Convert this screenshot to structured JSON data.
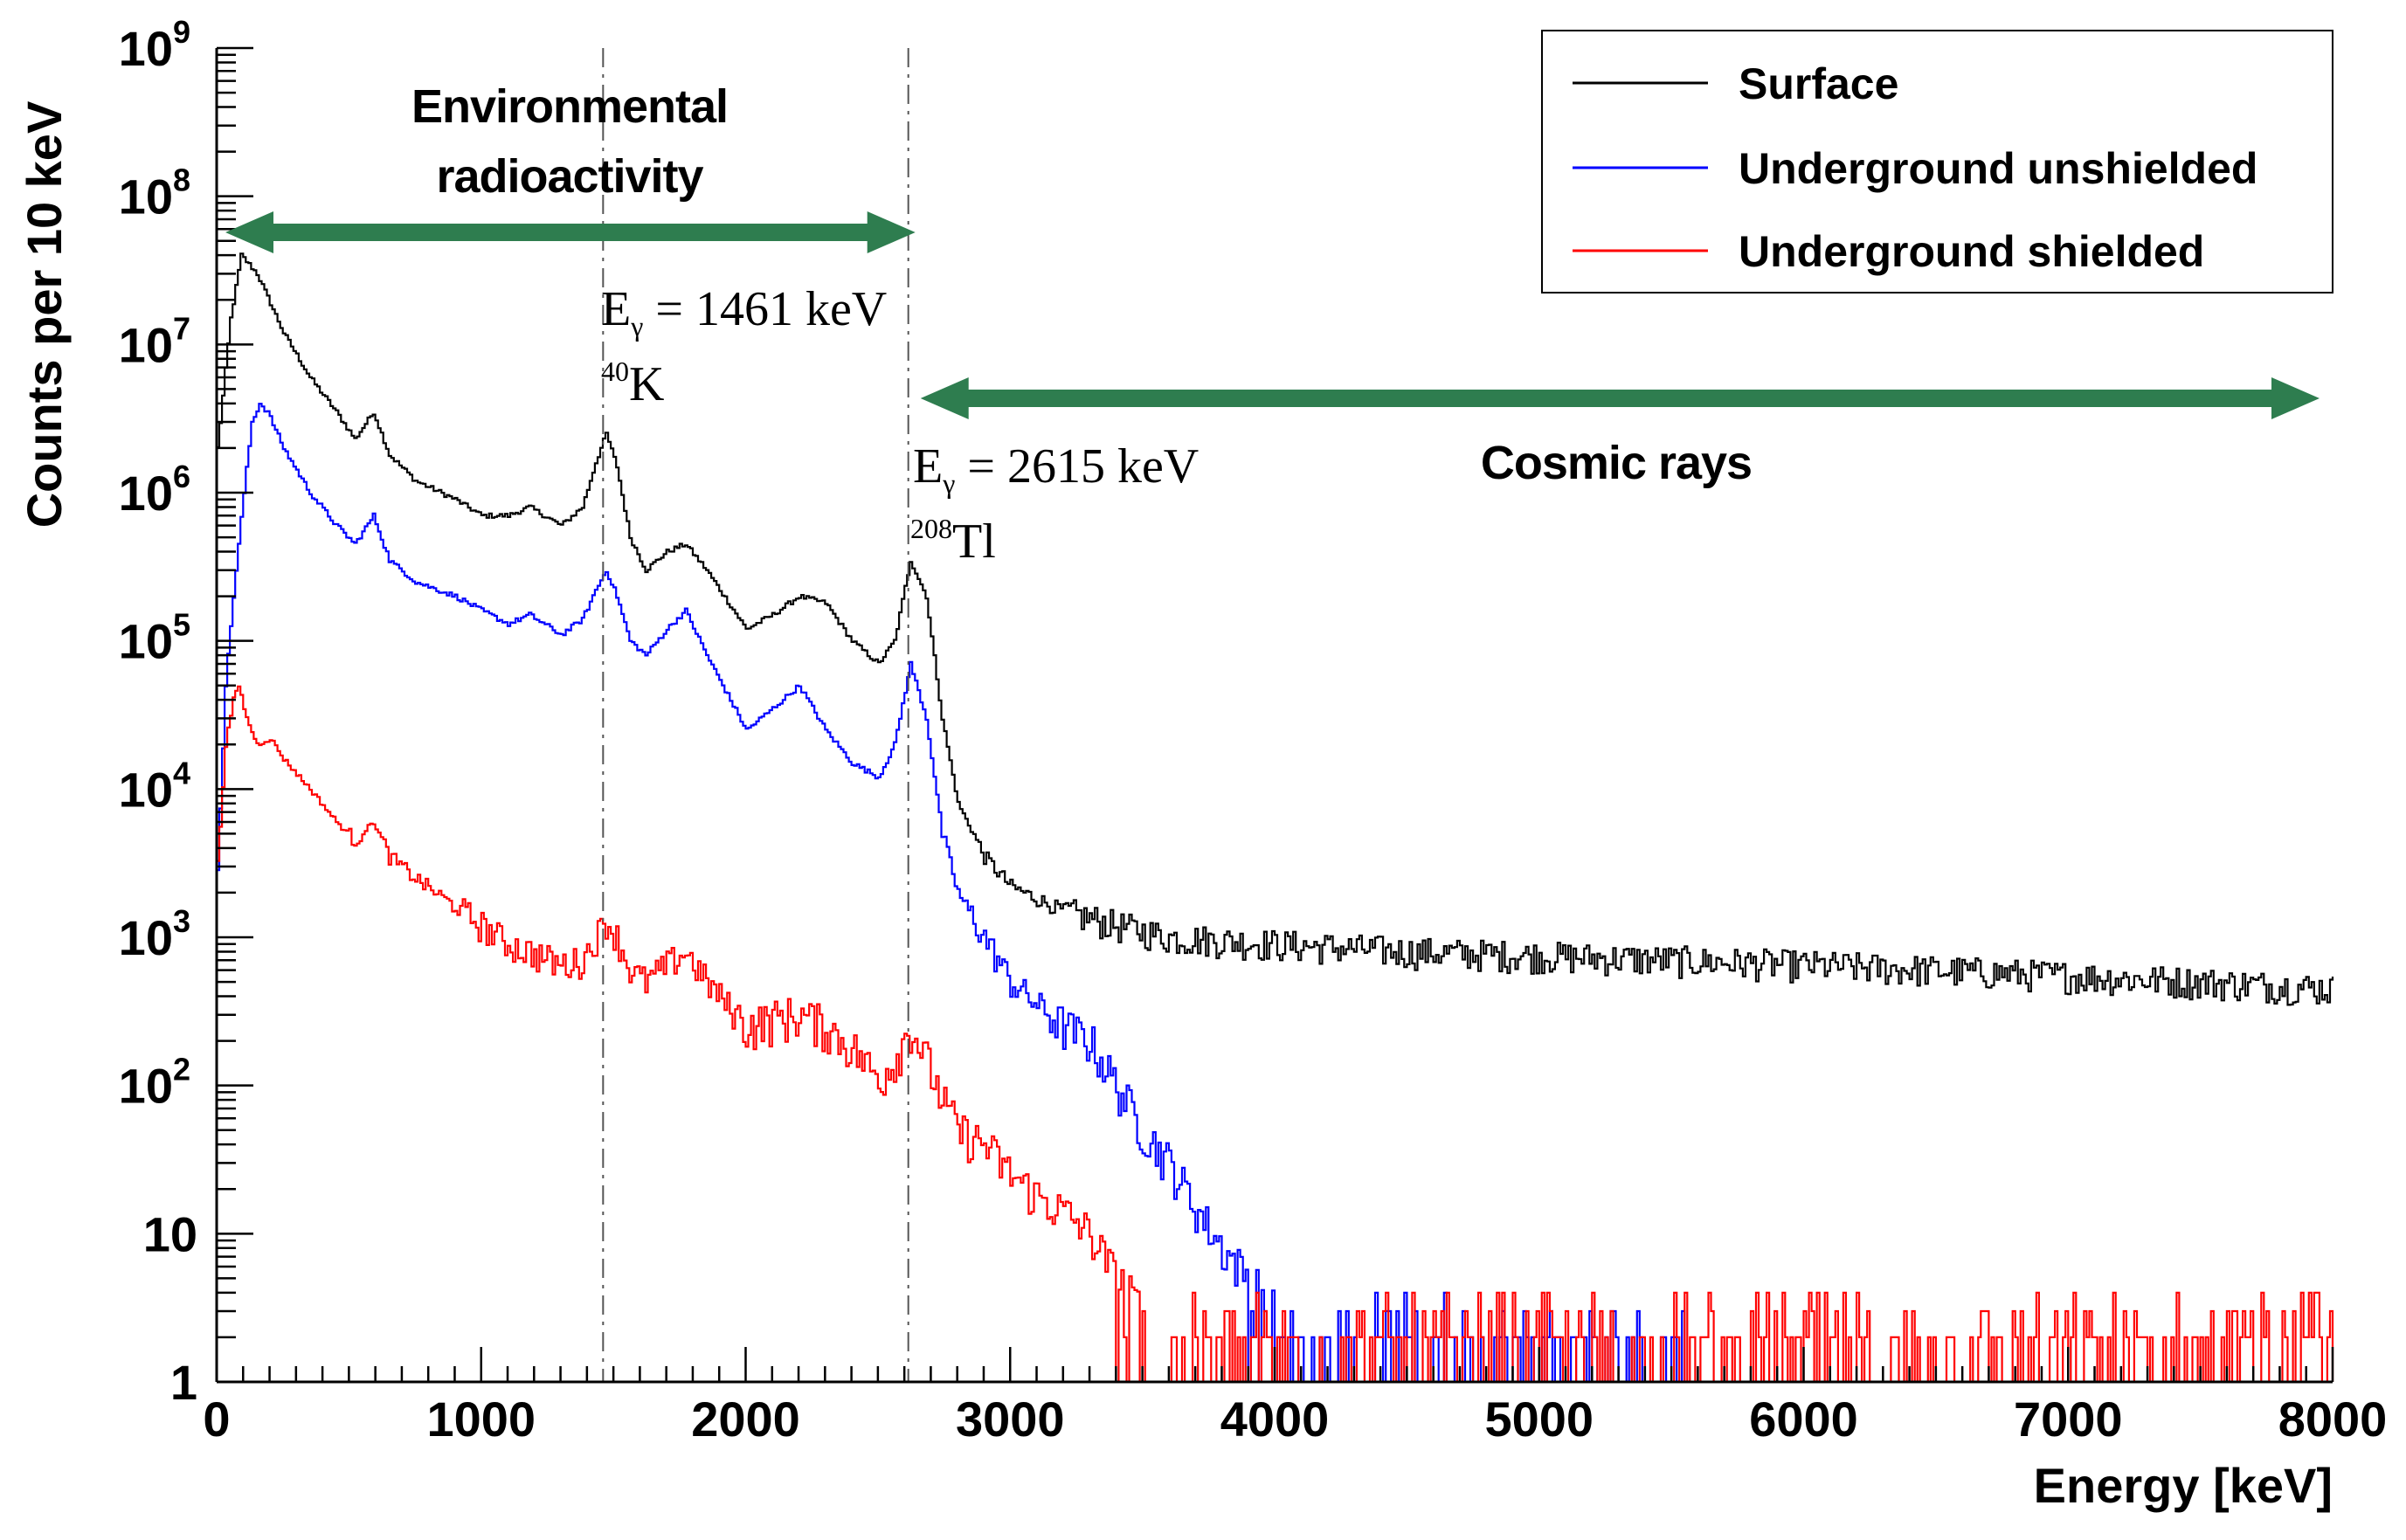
{
  "chart_data": {
    "type": "line",
    "title": "",
    "xlabel": "Energy [keV]",
    "ylabel": "Counts per 10 keV",
    "xlim": [
      0,
      8000
    ],
    "ylim": [
      1,
      1000000000
    ],
    "yscale": "log",
    "grid": false,
    "legend_position": "top-right",
    "x_ticks": [
      0,
      1000,
      2000,
      3000,
      4000,
      5000,
      6000,
      7000,
      8000
    ],
    "x_tick_labels": [
      "0",
      "1000",
      "2000",
      "3000",
      "4000",
      "5000",
      "6000",
      "7000",
      "8000"
    ],
    "y_ticks": [
      {
        "value": 1,
        "base": "1",
        "exp": ""
      },
      {
        "value": 10,
        "base": "10",
        "exp": ""
      },
      {
        "value": 100,
        "base": "10",
        "exp": "2"
      },
      {
        "value": 1000,
        "base": "10",
        "exp": "3"
      },
      {
        "value": 10000,
        "base": "10",
        "exp": "4"
      },
      {
        "value": 100000,
        "base": "10",
        "exp": "5"
      },
      {
        "value": 1000000,
        "base": "10",
        "exp": "6"
      },
      {
        "value": 10000000,
        "base": "10",
        "exp": "7"
      },
      {
        "value": 100000000,
        "base": "10",
        "exp": "8"
      },
      {
        "value": 1000000000,
        "base": "10",
        "exp": "9"
      }
    ],
    "series": [
      {
        "name": "Surface",
        "color": "#000000",
        "x": [
          0,
          50,
          90,
          150,
          250,
          350,
          450,
          520,
          590,
          650,
          750,
          900,
          1000,
          1100,
          1180,
          1300,
          1380,
          1430,
          1470,
          1510,
          1560,
          1620,
          1700,
          1770,
          1850,
          2000,
          2100,
          2200,
          2300,
          2400,
          2500,
          2560,
          2620,
          2680,
          2740,
          2800,
          2900,
          3000,
          3200,
          3400,
          3600,
          4000,
          4500,
          5000,
          5500,
          6000,
          6500,
          7000,
          7500,
          8000
        ],
        "y": [
          2000000.0,
          15000000.0,
          40000000.0,
          30000000.0,
          12000000.0,
          6000000.0,
          3500000.0,
          2300000.0,
          3500000.0,
          1800000.0,
          1200000.0,
          900000.0,
          700000.0,
          700000.0,
          800000.0,
          600000.0,
          800000.0,
          1600000.0,
          2500000.0,
          1500000.0,
          500000.0,
          300000.0,
          400000.0,
          450000.0,
          300000.0,
          120000.0,
          150000.0,
          200000.0,
          180000.0,
          100000.0,
          70000.0,
          100000.0,
          350000.0,
          200000.0,
          30000.0,
          8000.0,
          3500.0,
          2200.0,
          1500.0,
          1200.0,
          1000.0,
          900,
          800,
          750,
          700,
          650,
          600,
          550,
          500,
          450
        ]
      },
      {
        "name": "Underground unshielded",
        "color": "#0000ff",
        "x": [
          0,
          30,
          60,
          100,
          130,
          160,
          190,
          250,
          350,
          450,
          520,
          590,
          650,
          750,
          900,
          1000,
          1100,
          1180,
          1300,
          1380,
          1430,
          1470,
          1510,
          1560,
          1620,
          1700,
          1770,
          1850,
          2000,
          2100,
          2200,
          2300,
          2400,
          2500,
          2560,
          2620,
          2680,
          2740,
          2800,
          2900,
          3000,
          3100,
          3200,
          3300,
          3400,
          3500,
          3600,
          3700,
          3800,
          3900,
          4000,
          4200,
          4400,
          4600,
          4800,
          5000,
          5200,
          5400,
          5550
        ],
        "y": [
          3000.0,
          50000.0,
          200000.0,
          1000000.0,
          3000000.0,
          4000000.0,
          3500000.0,
          2000000.0,
          1000000.0,
          600000.0,
          450000.0,
          700000.0,
          350000.0,
          250000.0,
          200000.0,
          160000.0,
          130000.0,
          150000.0,
          110000.0,
          140000.0,
          220000.0,
          300000.0,
          200000.0,
          100000.0,
          80000.0,
          120000.0,
          160000.0,
          80000.0,
          25000.0,
          35000.0,
          50000.0,
          25000.0,
          15000.0,
          12000.0,
          20000.0,
          70000.0,
          30000.0,
          5000.0,
          2000.0,
          1000.0,
          500,
          350,
          250,
          200,
          100,
          50,
          30,
          15,
          8,
          5,
          3,
          2,
          2,
          2,
          1.5,
          1.5,
          1.3,
          1.2,
          1
        ]
      },
      {
        "name": "Underground shielded",
        "color": "#ff0000",
        "x": [
          0,
          30,
          60,
          80,
          110,
          150,
          200,
          250,
          350,
          450,
          520,
          590,
          650,
          750,
          900,
          1000,
          1100,
          1180,
          1300,
          1380,
          1430,
          1470,
          1510,
          1560,
          1620,
          1700,
          1770,
          1850,
          2000,
          2100,
          2200,
          2300,
          2400,
          2500,
          2560,
          2620,
          2680,
          2740,
          2800,
          2900,
          3000,
          3100,
          3200,
          3300,
          3400,
          3500,
          3600,
          3700,
          3800,
          4000,
          5000,
          6000,
          7000,
          8000
        ],
        "y": [
          3000.0,
          20000.0,
          40000.0,
          50000.0,
          30000.0,
          20000.0,
          22000.0,
          16000.0,
          10000.0,
          6000.0,
          4500.0,
          6000.0,
          3500.0,
          2500.0,
          1600.0,
          1200.0,
          900,
          800,
          650,
          700,
          1000.0,
          1300.0,
          1000.0,
          600,
          500,
          650,
          800,
          500,
          250,
          280,
          300,
          250,
          180,
          110,
          150,
          250,
          150,
          80,
          50,
          40,
          25,
          18,
          14,
          10,
          5,
          3,
          2,
          1.5,
          1,
          1,
          1,
          1,
          1,
          1
        ]
      }
    ],
    "vertical_markers": [
      1461,
      2615
    ],
    "annotations": {
      "environmental_label_line1": "Environmental",
      "environmental_label_line2": "radioactivity",
      "environmental_range": [
        0,
        2615
      ],
      "cosmic_label": "Cosmic rays",
      "cosmic_range": [
        2615,
        8000
      ],
      "k40_energy_prefix": "E",
      "k40_energy_sub": "γ",
      "k40_energy_value": " = 1461 keV",
      "k40_isotope_mass": "40",
      "k40_isotope_symbol": "K",
      "tl208_energy_prefix": "E",
      "tl208_energy_sub": "γ",
      "tl208_energy_value": " = 2615 keV",
      "tl208_isotope_mass": "208",
      "tl208_isotope_symbol": "Tl"
    },
    "arrow_color": "#2e7d4f"
  }
}
